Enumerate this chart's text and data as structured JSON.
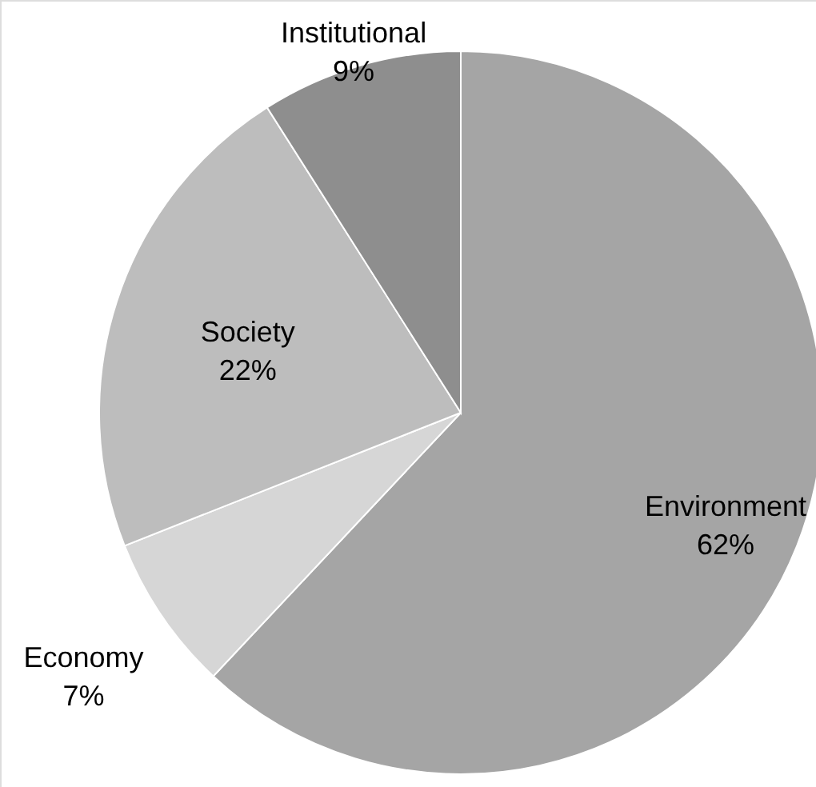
{
  "chart_data": {
    "type": "pie",
    "categories": [
      "Environment",
      "Economy",
      "Society",
      "Institutional"
    ],
    "values": [
      62,
      7,
      22,
      9
    ],
    "colors": [
      "#a5a5a5",
      "#d6d6d6",
      "#bdbdbd",
      "#8e8e8e"
    ],
    "value_labels": [
      "62%",
      "7%",
      "22%",
      "9%"
    ]
  }
}
